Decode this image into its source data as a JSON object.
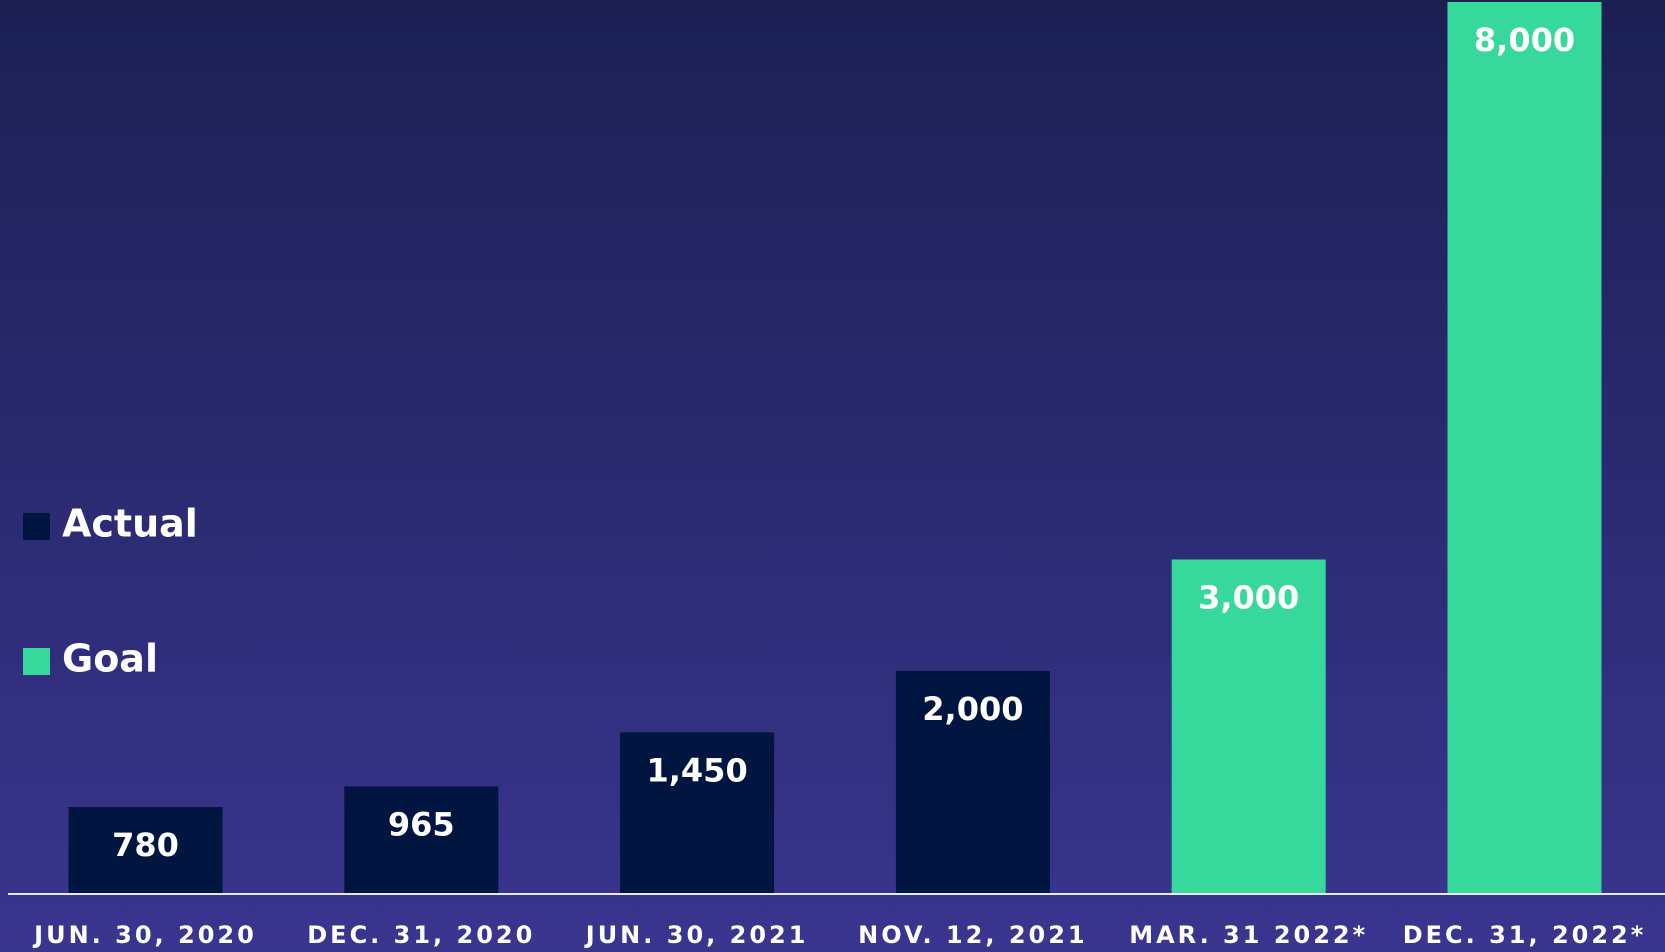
{
  "chart_data": {
    "type": "bar",
    "categories": [
      "JUN. 30, 2020",
      "DEC. 31, 2020",
      "JUN. 30, 2021",
      "NOV. 12, 2021",
      "MAR. 31 2022*",
      "DEC. 31, 2022*"
    ],
    "series": [
      {
        "name": "Actual",
        "color": "#001540",
        "values": [
          780,
          965,
          1450,
          2000,
          null,
          null
        ],
        "value_labels": [
          "780",
          "965",
          "1,450",
          "2,000",
          null,
          null
        ]
      },
      {
        "name": "Goal",
        "color": "#37d89c",
        "values": [
          null,
          null,
          null,
          null,
          3000,
          8000
        ],
        "value_labels": [
          null,
          null,
          null,
          null,
          "3,000",
          "8,000"
        ]
      }
    ],
    "ylim": [
      0,
      8000
    ],
    "legend": "left"
  }
}
